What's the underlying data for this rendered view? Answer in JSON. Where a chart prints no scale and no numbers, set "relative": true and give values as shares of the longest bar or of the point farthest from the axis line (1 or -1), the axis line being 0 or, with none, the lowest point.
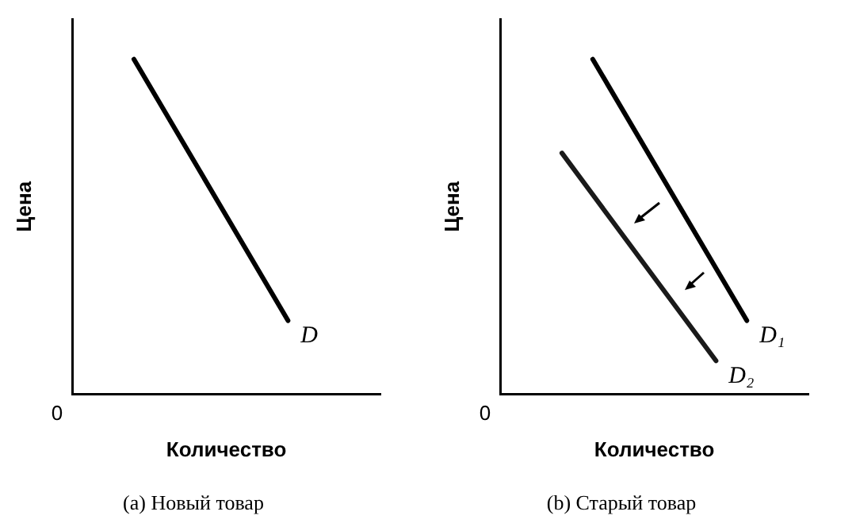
{
  "chart_data": [
    {
      "type": "line",
      "title": "(a) Новый товар",
      "xlabel": "Количество",
      "ylabel": "Цена",
      "annotations": [
        "0"
      ],
      "relative": true,
      "categories": [
        null,
        null,
        null,
        null,
        null,
        null,
        null,
        null,
        null,
        null,
        null
      ],
      "series": [
        {
          "name": "D",
          "color": "#000000",
          "values": [
            null,
            null,
            1,
            null,
            null,
            null,
            null,
            0.22,
            null,
            null,
            null
          ]
        }
      ]
    },
    {
      "type": "line",
      "title": "(b) Старый товар",
      "xlabel": "Количество",
      "ylabel": "Цена",
      "annotations": [
        "0"
      ],
      "relative": true,
      "categories": [
        null,
        null,
        null,
        null,
        null,
        null,
        null,
        null,
        null,
        null,
        null
      ],
      "series": [
        {
          "name": "D₁",
          "color": "#000000",
          "values": [
            null,
            null,
            null,
            1,
            null,
            null,
            null,
            null,
            0.22,
            null,
            null
          ]
        },
        {
          "name": "D₂",
          "color": "#1a1a1a",
          "values": [
            null,
            null,
            0.72,
            null,
            null,
            null,
            null,
            0.1,
            null,
            null,
            null
          ]
        }
      ]
    }
  ]
}
